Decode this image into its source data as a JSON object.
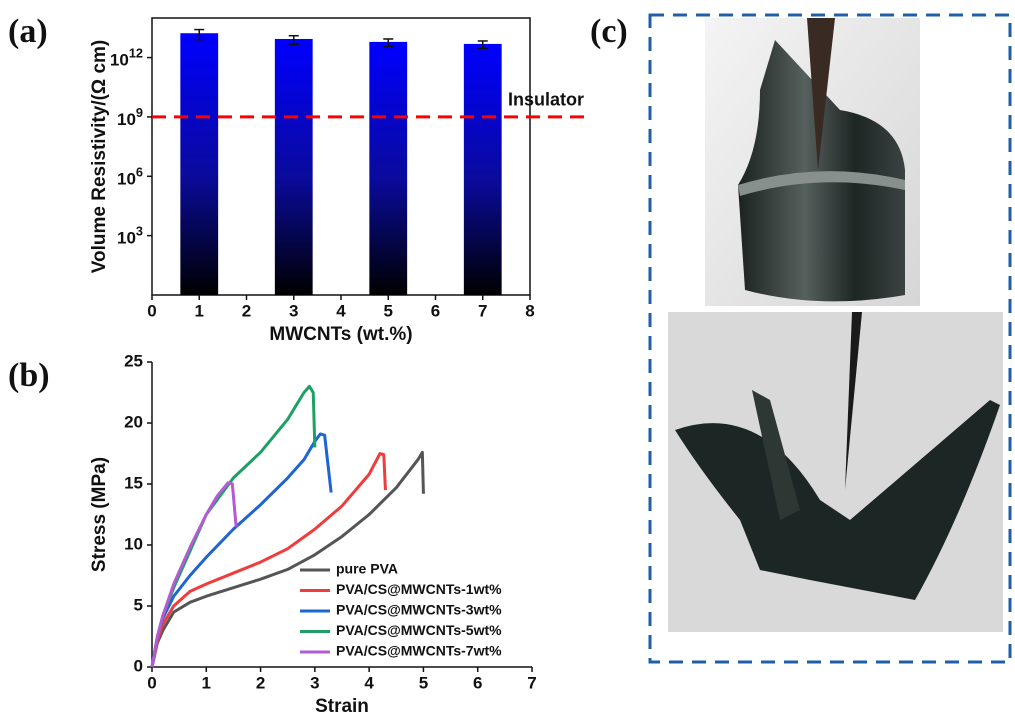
{
  "chart_data": [
    {
      "type": "bar",
      "panel_label": "(a)",
      "x_label": "MWCNTs (wt.%)",
      "y_label": "Volume Resistivity/(Ω cm)",
      "x": [
        1,
        3,
        5,
        7
      ],
      "values": [
        17000000000000,
        8700000000000,
        6200000000000,
        4900000000000
      ],
      "errors": [
        9000000000000,
        4000000000000,
        2500000000000,
        2000000000000
      ],
      "color": "#0000ff",
      "xlim": [
        0,
        8
      ],
      "xticks": [
        0,
        1,
        2,
        3,
        4,
        5,
        6,
        7,
        8
      ],
      "ylim": [
        1,
        100000000000000
      ],
      "log_y": true,
      "yticks": [
        {
          "value": 1000,
          "label": "10^3"
        },
        {
          "value": 1000000,
          "label": "10^6"
        },
        {
          "value": 1000000000,
          "label": "10^9"
        },
        {
          "value": 1000000000000,
          "label": "10^12"
        }
      ],
      "reference_line": {
        "value": 1000000000,
        "label": "Insulator",
        "color": "#ff0000"
      }
    },
    {
      "type": "line",
      "panel_label": "(b)",
      "x_label": "Strain",
      "y_label": "Stress (MPa)",
      "xlim": [
        0,
        7
      ],
      "xticks": [
        0,
        1,
        2,
        3,
        4,
        5,
        6,
        7
      ],
      "ylim": [
        0,
        25
      ],
      "yticks": [
        0,
        5,
        10,
        15,
        20,
        25
      ],
      "legend": "lower right",
      "series": [
        {
          "name": "pure PVA",
          "color": "#555555",
          "x": [
            0,
            0.1,
            0.2,
            0.4,
            0.7,
            1,
            1.5,
            2,
            2.5,
            3,
            3.5,
            4,
            4.5,
            4.9,
            4.98,
            5
          ],
          "values": [
            0,
            2,
            3,
            4.5,
            5.3,
            5.8,
            6.5,
            7.2,
            8,
            9.2,
            10.7,
            12.5,
            14.7,
            17,
            17.6,
            14.2
          ]
        },
        {
          "name": "PVA/CS@MWCNTs-1wt%",
          "color": "#f03c3c",
          "x": [
            0,
            0.1,
            0.2,
            0.4,
            0.7,
            1,
            1.5,
            2,
            2.5,
            3,
            3.5,
            4,
            4.2,
            4.27,
            4.3
          ],
          "values": [
            0,
            2.2,
            3.5,
            5,
            6.2,
            6.8,
            7.7,
            8.6,
            9.7,
            11.3,
            13.2,
            15.8,
            17.5,
            17.4,
            14.5
          ]
        },
        {
          "name": "PVA/CS@MWCNTs-3wt%",
          "color": "#1e64d2",
          "x": [
            0,
            0.1,
            0.2,
            0.4,
            0.7,
            1,
            1.5,
            2,
            2.5,
            2.8,
            3,
            3.1,
            3.18,
            3.3
          ],
          "values": [
            0,
            2.5,
            4,
            5.8,
            7.5,
            9,
            11.3,
            13.3,
            15.5,
            17,
            18.5,
            19.1,
            19,
            14.3
          ]
        },
        {
          "name": "PVA/CS@MWCNTs-5wt%",
          "color": "#1ea064",
          "x": [
            0,
            0.1,
            0.2,
            0.4,
            0.7,
            1,
            1.5,
            2,
            2.5,
            2.8,
            2.9,
            2.97,
            3
          ],
          "values": [
            0,
            2.5,
            4.2,
            6.5,
            9.5,
            12.5,
            15.5,
            17.6,
            20.3,
            22.5,
            23,
            22.5,
            18
          ]
        },
        {
          "name": "PVA/CS@MWCNTs-7wt%",
          "color": "#b45ad2",
          "x": [
            0,
            0.1,
            0.2,
            0.4,
            0.7,
            1,
            1.2,
            1.4,
            1.48,
            1.55
          ],
          "values": [
            0,
            2.5,
            4.2,
            6.8,
            9.8,
            12.5,
            14,
            15.1,
            15,
            11.5
          ]
        }
      ]
    }
  ],
  "photo_panel": {
    "label": "(c)"
  }
}
